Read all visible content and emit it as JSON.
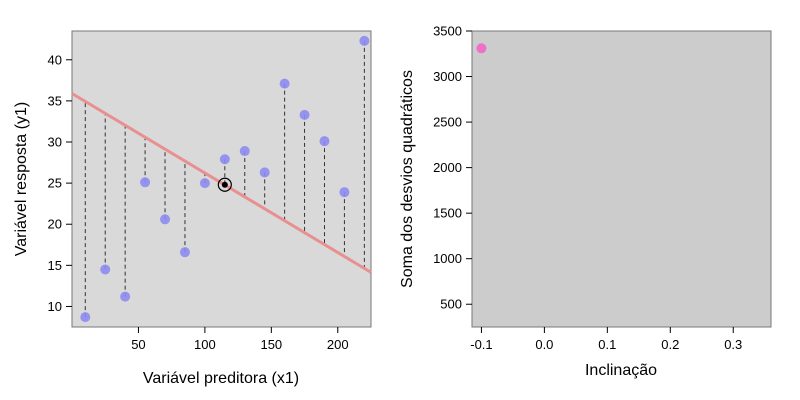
{
  "chart_data": [
    {
      "type": "scatter",
      "xlabel": "Variável preditora (x1)",
      "ylabel": "Variável resposta (y1)",
      "xlim": [
        0,
        225
      ],
      "ylim": [
        7.5,
        43.5
      ],
      "xticks": [
        50,
        100,
        150,
        200
      ],
      "yticks": [
        10,
        15,
        20,
        25,
        30,
        35,
        40
      ],
      "grid": false,
      "series": [
        {
          "x": [
            10,
            25,
            40,
            55,
            70,
            85,
            100,
            115,
            130,
            145,
            160,
            175,
            190,
            205,
            220
          ],
          "y": [
            8.7,
            14.5,
            11.2,
            25.1,
            20.6,
            16.6,
            25.0,
            27.9,
            28.9,
            26.3,
            37.1,
            33.3,
            30.1,
            23.9,
            42.3
          ]
        }
      ],
      "center_point": {
        "x": 115,
        "y": 24.8
      },
      "fitted_line": {
        "intercept": 35.9,
        "slope": -0.0967
      },
      "residual_lines": "dashed",
      "colors": {
        "points": "#8c8cf0",
        "line": "#e89090",
        "panel": "#d9d9d9"
      }
    },
    {
      "type": "scatter",
      "xlabel": "Inclinação",
      "ylabel": "Soma dos desvios quadráticos",
      "xlim": [
        -0.115,
        0.36
      ],
      "ylim": [
        250,
        3500
      ],
      "xticks": [
        -0.1,
        0.0,
        0.1,
        0.2,
        0.3
      ],
      "xtick_labels": [
        "-0.1",
        "0.0",
        "0.1",
        "0.2",
        "0.3"
      ],
      "yticks": [
        500,
        1000,
        1500,
        2000,
        2500,
        3000,
        3500
      ],
      "grid": false,
      "series": [
        {
          "x": [
            -0.1
          ],
          "y": [
            3310
          ]
        }
      ],
      "colors": {
        "points": "#f070c8",
        "panel": "#cccccc"
      }
    }
  ]
}
